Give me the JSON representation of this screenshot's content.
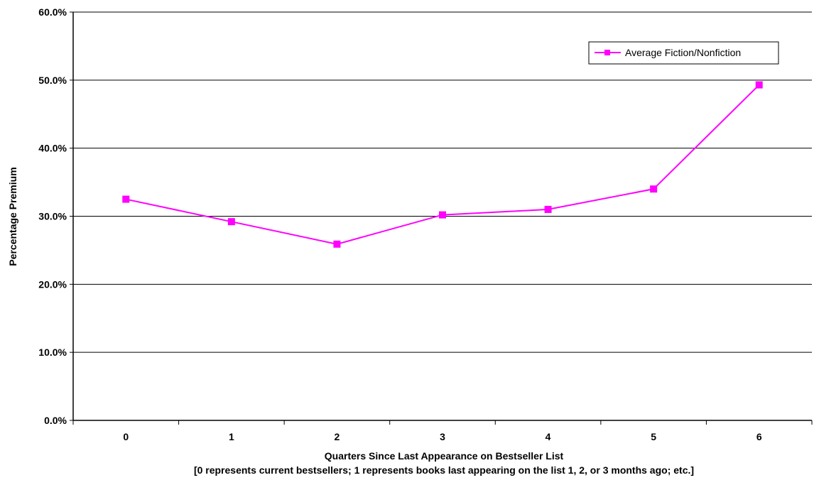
{
  "chart_data": {
    "type": "line",
    "title": "",
    "xlabel": "Quarters Since Last Appearance on Bestseller List",
    "xlabel_note": "[0 represents current bestsellers; 1 represents books last appearing on the list 1, 2, or 3 months ago; etc.]",
    "ylabel": "Percentage Premium",
    "categories": [
      "0",
      "1",
      "2",
      "3",
      "4",
      "5",
      "6"
    ],
    "ylim": [
      0,
      60
    ],
    "yticks": [
      0,
      10,
      20,
      30,
      40,
      50,
      60
    ],
    "ytick_labels": [
      "0.0%",
      "10.0%",
      "20.0%",
      "30.0%",
      "40.0%",
      "50.0%",
      "60.0%"
    ],
    "grid": true,
    "legend_position": "top-right",
    "series": [
      {
        "name": "Average Fiction/Nonfiction",
        "color": "#ff00ff",
        "marker": "square",
        "values": [
          32.5,
          29.2,
          25.9,
          30.2,
          31.0,
          34.0,
          49.3
        ]
      }
    ]
  }
}
